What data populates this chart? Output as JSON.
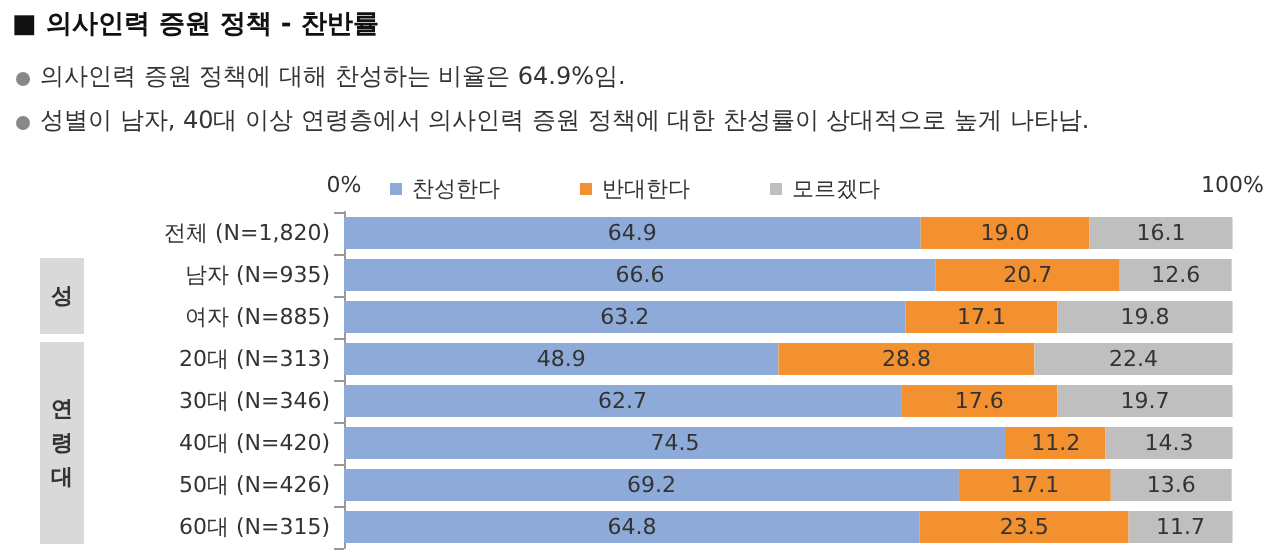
{
  "chart_data": {
    "type": "bar",
    "orientation": "horizontal",
    "stacked": true,
    "title": "■ 의사인력 증원 정책 - 찬반률",
    "subtitle": "의사인력 증원 정책에 대해 찬성하는 비율은 64.9%임.",
    "annotations": [
      "성별이 남자, 40대 이상 연령층에서 의사인력 증원 정책에 대한 찬성률이 상대적으로 높게 나타남.",
      "성",
      "연령대"
    ],
    "categories": [
      "전체 (N=1,820)",
      "남자 (N=935)",
      "여자 (N=885)",
      "20대 (N=313)",
      "30대 (N=346)",
      "40대 (N=420)",
      "50대 (N=426)",
      "60대 (N=315)"
    ],
    "series": [
      {
        "name": "찬성한다",
        "color": "#8eaad8",
        "values": [
          64.9,
          66.6,
          63.2,
          48.9,
          62.7,
          74.5,
          69.2,
          64.8
        ],
        "value_labels": [
          "64.9",
          "66.6",
          "63.2",
          "48.9",
          "62.7",
          "74.5",
          "69.2",
          "64.8"
        ]
      },
      {
        "name": "반대한다",
        "color": "#f39130",
        "values": [
          19.0,
          20.7,
          17.1,
          28.8,
          17.6,
          11.2,
          17.1,
          23.5
        ],
        "value_labels": [
          "19.0",
          "20.7",
          "17.1",
          "28.8",
          "17.6",
          "11.2",
          "17.1",
          "23.5"
        ]
      },
      {
        "name": "모르겠다",
        "color": "#bfbfbf",
        "values": [
          16.1,
          12.6,
          19.8,
          22.4,
          19.7,
          14.3,
          13.6,
          11.7
        ],
        "value_labels": [
          "16.1",
          "12.6",
          "19.8",
          "22.4",
          "19.7",
          "14.3",
          "13.6",
          "11.7"
        ]
      }
    ],
    "xlim": [
      0,
      100
    ],
    "xticks": [
      {
        "value": 0,
        "label": "0%"
      },
      {
        "value": 100,
        "label": "100%"
      }
    ],
    "grid": false,
    "legend": "top"
  }
}
